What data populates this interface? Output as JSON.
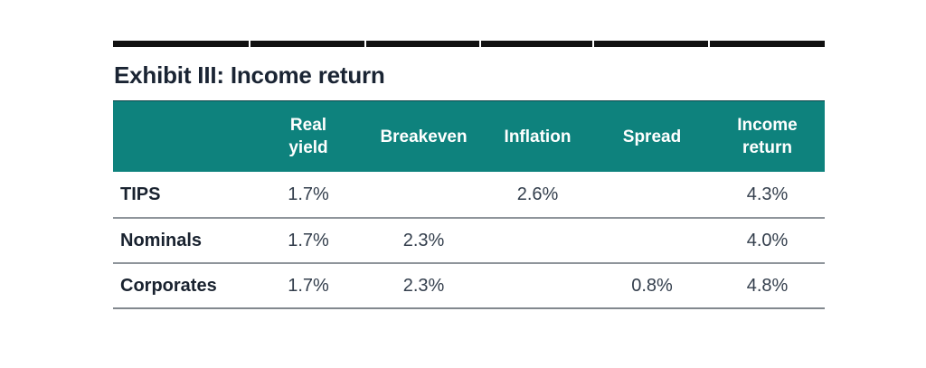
{
  "exhibit": {
    "title": "Exhibit III: Income return",
    "colors": {
      "page_bg": "#ffffff",
      "accent_teal": "#0e827d",
      "top_rule": "#111111",
      "title_text": "#1a2433",
      "header_text": "#ffffff",
      "label_text": "#19222f",
      "value_text": "#333e4c",
      "row_divider": "#8f959b",
      "bottom_rule": "#82888e"
    },
    "table": {
      "columns": [
        "",
        "Real\nyield",
        "Breakeven",
        "Inflation",
        "Spread",
        "Income\nreturn"
      ],
      "rows": [
        {
          "label": "TIPS",
          "values": [
            "1.7%",
            "",
            "2.6%",
            "",
            "4.3%"
          ]
        },
        {
          "label": "Nominals",
          "values": [
            "1.7%",
            "2.3%",
            "",
            "",
            "4.0%"
          ]
        },
        {
          "label": "Corporates",
          "values": [
            "1.7%",
            "2.3%",
            "",
            "0.8%",
            "4.8%"
          ]
        }
      ]
    }
  }
}
